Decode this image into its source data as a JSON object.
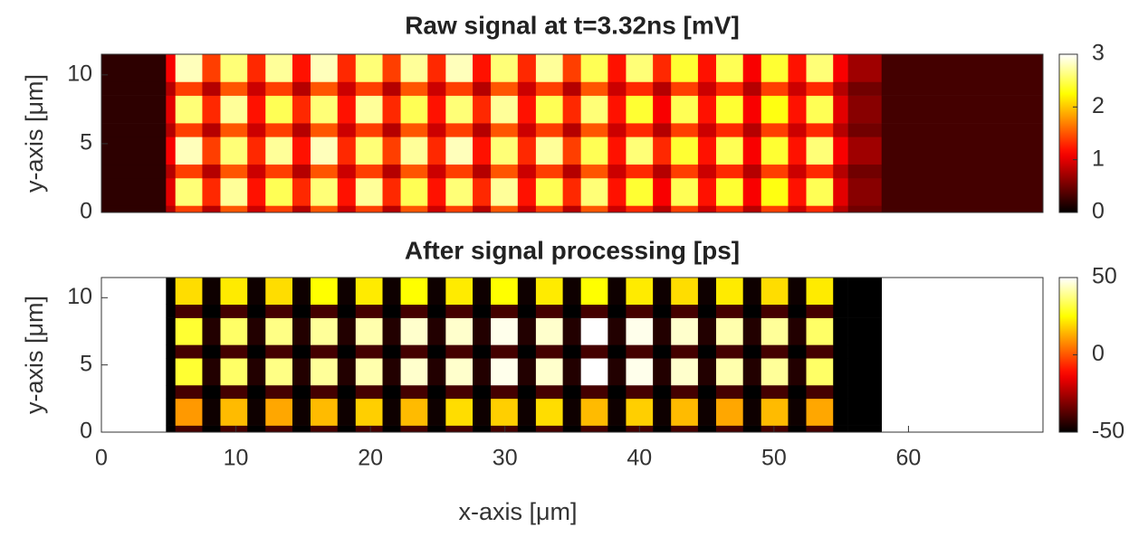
{
  "chart_data": [
    {
      "type": "heatmap",
      "title": "Raw signal at t=3.32ns [mV]",
      "ylabel": "y-axis [μm]",
      "xlim": [
        0,
        70
      ],
      "ylim": [
        0,
        11.5
      ],
      "yticks": [
        0,
        5,
        10
      ],
      "colormap": "hot",
      "clim": [
        0,
        3
      ],
      "cticks": [
        0,
        1,
        2,
        3
      ],
      "xbins": [
        0,
        4.8,
        5.5,
        7.5,
        8.85,
        10.85,
        12.2,
        14.2,
        15.55,
        17.55,
        18.9,
        20.9,
        22.25,
        24.25,
        25.6,
        27.6,
        28.95,
        30.95,
        32.3,
        34.3,
        35.65,
        37.65,
        39,
        41,
        42.35,
        44.35,
        45.7,
        47.7,
        49.05,
        51.05,
        52.4,
        54.4,
        55.5,
        58,
        70
      ],
      "ybins": [
        0,
        0.5,
        2.5,
        3.5,
        5.5,
        6.5,
        8.5,
        9.5,
        11.5
      ],
      "z": [
        [
          0.2,
          0.8,
          1.4,
          0.8,
          1.5,
          0.9,
          1.4,
          0.8,
          1.5,
          0.9,
          1.4,
          0.8,
          1.5,
          0.9,
          1.4,
          0.8,
          1.5,
          0.9,
          1.4,
          0.8,
          1.5,
          0.9,
          1.3,
          0.8,
          1.4,
          0.9,
          1.3,
          0.8,
          1.4,
          0.9,
          1.3,
          0.8,
          0.5,
          0.3
        ],
        [
          0.2,
          1.0,
          2.6,
          1.3,
          2.7,
          1.2,
          2.5,
          1.3,
          2.6,
          1.2,
          2.7,
          1.3,
          2.5,
          1.2,
          2.6,
          1.3,
          2.7,
          1.2,
          2.5,
          1.3,
          2.6,
          1.2,
          2.4,
          1.1,
          2.5,
          1.2,
          2.4,
          1.1,
          2.3,
          1.2,
          2.5,
          1.0,
          0.6,
          0.3
        ],
        [
          0.2,
          0.8,
          1.4,
          0.8,
          1.5,
          0.9,
          1.4,
          0.8,
          1.5,
          0.9,
          1.4,
          0.8,
          1.5,
          0.9,
          1.4,
          0.8,
          1.5,
          0.9,
          1.4,
          0.8,
          1.5,
          0.9,
          1.3,
          0.8,
          1.4,
          0.9,
          1.3,
          0.8,
          1.4,
          0.9,
          1.3,
          0.8,
          0.5,
          0.3
        ],
        [
          0.2,
          1.1,
          2.8,
          1.4,
          2.6,
          1.3,
          2.7,
          1.2,
          2.8,
          1.3,
          2.6,
          1.4,
          2.7,
          1.3,
          2.8,
          1.2,
          2.6,
          1.3,
          2.7,
          1.4,
          2.5,
          1.2,
          2.6,
          1.3,
          2.4,
          1.2,
          2.5,
          1.1,
          2.4,
          1.2,
          2.6,
          1.1,
          0.7,
          0.3
        ],
        [
          0.2,
          0.8,
          1.4,
          0.8,
          1.5,
          0.9,
          1.4,
          0.8,
          1.5,
          0.9,
          1.4,
          0.8,
          1.5,
          0.9,
          1.4,
          0.8,
          1.5,
          0.9,
          1.4,
          0.8,
          1.5,
          0.9,
          1.3,
          0.8,
          1.4,
          0.9,
          1.3,
          0.8,
          1.4,
          0.9,
          1.3,
          0.8,
          0.5,
          0.3
        ],
        [
          0.2,
          1.0,
          2.6,
          1.3,
          2.7,
          1.2,
          2.5,
          1.3,
          2.6,
          1.2,
          2.7,
          1.3,
          2.5,
          1.2,
          2.6,
          1.3,
          2.7,
          1.2,
          2.5,
          1.3,
          2.6,
          1.2,
          2.4,
          1.1,
          2.5,
          1.2,
          2.4,
          1.1,
          2.3,
          1.2,
          2.5,
          1.0,
          0.6,
          0.3
        ],
        [
          0.2,
          0.8,
          1.4,
          0.8,
          1.5,
          0.9,
          1.4,
          0.8,
          1.5,
          0.9,
          1.4,
          0.8,
          1.5,
          0.9,
          1.4,
          0.8,
          1.5,
          0.9,
          1.4,
          0.8,
          1.5,
          0.9,
          1.3,
          0.8,
          1.4,
          0.9,
          1.3,
          0.8,
          1.4,
          0.9,
          1.3,
          0.8,
          0.5,
          0.3
        ],
        [
          0.2,
          1.1,
          2.8,
          1.4,
          2.6,
          1.3,
          2.7,
          1.2,
          2.8,
          1.3,
          2.6,
          1.4,
          2.7,
          1.3,
          2.8,
          1.2,
          2.6,
          1.3,
          2.7,
          1.4,
          2.5,
          1.2,
          2.6,
          1.3,
          2.4,
          1.2,
          2.5,
          1.1,
          2.4,
          1.2,
          2.6,
          1.1,
          0.7,
          0.3
        ]
      ]
    },
    {
      "type": "heatmap",
      "title": "After signal processing [ps]",
      "ylabel": "y-axis [μm]",
      "xlabel": "x-axis [μm]",
      "xlim": [
        0,
        70
      ],
      "ylim": [
        0,
        11.5
      ],
      "xticks": [
        0,
        10,
        20,
        30,
        40,
        50,
        60
      ],
      "yticks": [
        0,
        5,
        10
      ],
      "colormap": "hot",
      "clim": [
        -50,
        50
      ],
      "cticks": [
        -50,
        0,
        50
      ],
      "xbins": [
        0,
        4.8,
        5.5,
        7.5,
        8.85,
        10.85,
        12.2,
        14.2,
        15.55,
        17.55,
        18.9,
        20.9,
        22.25,
        24.25,
        25.6,
        27.6,
        28.95,
        30.95,
        32.3,
        34.3,
        35.65,
        37.65,
        39,
        41,
        42.35,
        44.35,
        45.7,
        47.7,
        49.05,
        51.05,
        52.4,
        54.4,
        55.5,
        58,
        70
      ],
      "ybins": [
        0,
        0.5,
        2.5,
        3.5,
        5.5,
        6.5,
        8.5,
        9.5,
        11.5
      ],
      "z": [
        [
          null,
          -50,
          -40,
          -50,
          -40,
          -50,
          -40,
          -50,
          -40,
          -50,
          -40,
          -50,
          -40,
          -50,
          -40,
          -50,
          -40,
          -50,
          -40,
          -50,
          -40,
          -50,
          -40,
          -50,
          -40,
          -50,
          -40,
          -50,
          -40,
          -50,
          -40,
          -50,
          -50,
          null
        ],
        [
          null,
          -50,
          10,
          -48,
          15,
          -48,
          12,
          -48,
          15,
          -48,
          18,
          -48,
          15,
          -48,
          20,
          -48,
          18,
          -48,
          20,
          -48,
          15,
          -48,
          18,
          -48,
          15,
          -48,
          12,
          -48,
          15,
          -48,
          12,
          -50,
          -50,
          null
        ],
        [
          null,
          -50,
          -40,
          -50,
          -40,
          -50,
          -40,
          -50,
          -40,
          -50,
          -40,
          -50,
          -40,
          -50,
          -40,
          -50,
          -40,
          -50,
          -40,
          -50,
          -40,
          -50,
          -40,
          -50,
          -40,
          -50,
          -40,
          -50,
          -40,
          -50,
          -40,
          -50,
          -50,
          null
        ],
        [
          null,
          -50,
          30,
          -45,
          35,
          -45,
          38,
          -45,
          40,
          -45,
          42,
          -45,
          45,
          -45,
          45,
          -45,
          48,
          -45,
          45,
          -45,
          50,
          -45,
          48,
          -45,
          45,
          -45,
          42,
          -45,
          40,
          -45,
          35,
          -50,
          -50,
          null
        ],
        [
          null,
          -50,
          -40,
          -50,
          -40,
          -50,
          -40,
          -50,
          -40,
          -50,
          -40,
          -50,
          -40,
          -50,
          -40,
          -50,
          -40,
          -50,
          -40,
          -50,
          -40,
          -50,
          -40,
          -50,
          -40,
          -50,
          -40,
          -50,
          -40,
          -50,
          -40,
          -50,
          -50,
          null
        ],
        [
          null,
          -50,
          30,
          -45,
          35,
          -45,
          38,
          -45,
          40,
          -45,
          42,
          -45,
          45,
          -45,
          45,
          -45,
          48,
          -45,
          45,
          -45,
          50,
          -45,
          48,
          -45,
          45,
          -45,
          42,
          -45,
          40,
          -45,
          35,
          -50,
          -50,
          null
        ],
        [
          null,
          -50,
          -40,
          -50,
          -40,
          -50,
          -40,
          -50,
          -40,
          -50,
          -40,
          -50,
          -40,
          -50,
          -40,
          -50,
          -40,
          -50,
          -40,
          -50,
          -40,
          -50,
          -40,
          -50,
          -40,
          -50,
          -40,
          -50,
          -40,
          -50,
          -40,
          -50,
          -50,
          null
        ],
        [
          null,
          -50,
          20,
          -48,
          22,
          -48,
          20,
          -48,
          25,
          -48,
          22,
          -48,
          25,
          -48,
          22,
          -48,
          25,
          -48,
          22,
          -48,
          25,
          -48,
          22,
          -48,
          20,
          -48,
          22,
          -48,
          20,
          -48,
          22,
          -50,
          -50,
          null
        ]
      ]
    }
  ]
}
